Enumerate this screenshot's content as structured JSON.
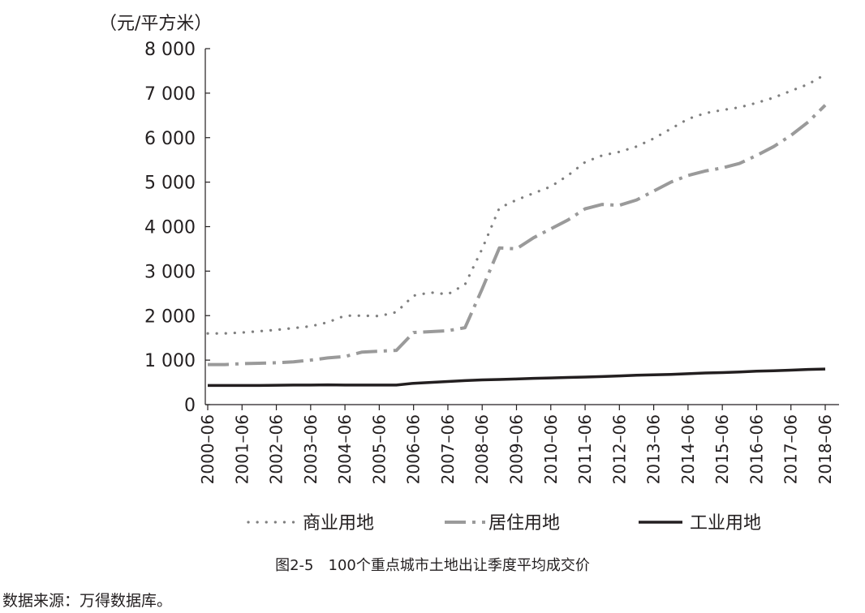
{
  "chart_data": {
    "type": "line",
    "ylabel": "（元/平方米）",
    "ylim": [
      0,
      8000
    ],
    "yticks": [
      0,
      1000,
      2000,
      3000,
      4000,
      5000,
      6000,
      7000,
      8000
    ],
    "ytick_labels": [
      "0",
      "1 000",
      "2 000",
      "3 000",
      "4 000",
      "5 000",
      "6 000",
      "7 000",
      "8 000"
    ],
    "x": [
      2000.0,
      2000.5,
      2001.0,
      2001.5,
      2002.0,
      2002.5,
      2003.0,
      2003.5,
      2004.0,
      2004.5,
      2005.0,
      2005.5,
      2006.0,
      2006.5,
      2007.0,
      2007.5,
      2008.0,
      2008.5,
      2009.0,
      2009.5,
      2010.0,
      2010.5,
      2011.0,
      2011.5,
      2012.0,
      2012.5,
      2013.0,
      2013.5,
      2014.0,
      2014.5,
      2015.0,
      2015.5,
      2016.0,
      2016.5,
      2017.0,
      2017.5,
      2018.0
    ],
    "xlim": [
      2000.0,
      2018.0
    ],
    "xtick_values": [
      2000,
      2001,
      2002,
      2003,
      2004,
      2005,
      2006,
      2007,
      2008,
      2009,
      2010,
      2011,
      2012,
      2013,
      2014,
      2015,
      2016,
      2017,
      2018
    ],
    "xtick_labels": [
      "2000–06",
      "2001–06",
      "2002–06",
      "2003–06",
      "2004–06",
      "2005–06",
      "2006–06",
      "2007–06",
      "2008–06",
      "2009–06",
      "2010–06",
      "2011–06",
      "2012–06",
      "2013–06",
      "2014–06",
      "2015–06",
      "2016–06",
      "2017–06",
      "2018–06"
    ],
    "series": [
      {
        "name": "商业用地",
        "style": "dotted",
        "color": "#7f7f7f",
        "values": [
          1600,
          1600,
          1620,
          1650,
          1680,
          1720,
          1760,
          1850,
          2000,
          2000,
          1990,
          2080,
          2450,
          2520,
          2480,
          2700,
          3500,
          4420,
          4600,
          4750,
          4900,
          5150,
          5450,
          5600,
          5680,
          5800,
          5980,
          6200,
          6420,
          6550,
          6620,
          6680,
          6780,
          6900,
          7050,
          7200,
          7420
        ]
      },
      {
        "name": "居住用地",
        "style": "dashdot",
        "color": "#9a9a9a",
        "values": [
          900,
          900,
          920,
          930,
          940,
          960,
          1000,
          1050,
          1080,
          1180,
          1200,
          1220,
          1620,
          1640,
          1660,
          1730,
          2600,
          3520,
          3500,
          3750,
          3950,
          4150,
          4400,
          4500,
          4480,
          4600,
          4800,
          5000,
          5150,
          5250,
          5320,
          5420,
          5600,
          5800,
          6050,
          6350,
          6730
        ]
      },
      {
        "name": "工业用地",
        "style": "solid",
        "color": "#231f20",
        "values": [
          430,
          430,
          430,
          430,
          435,
          440,
          440,
          445,
          440,
          440,
          440,
          440,
          480,
          500,
          520,
          540,
          555,
          565,
          575,
          590,
          600,
          610,
          620,
          630,
          645,
          660,
          670,
          680,
          695,
          710,
          720,
          735,
          750,
          760,
          775,
          790,
          800
        ]
      }
    ]
  },
  "caption": "图2-5　100个重点城市土地出让季度平均成交价",
  "source": "数据来源：万得数据库。"
}
